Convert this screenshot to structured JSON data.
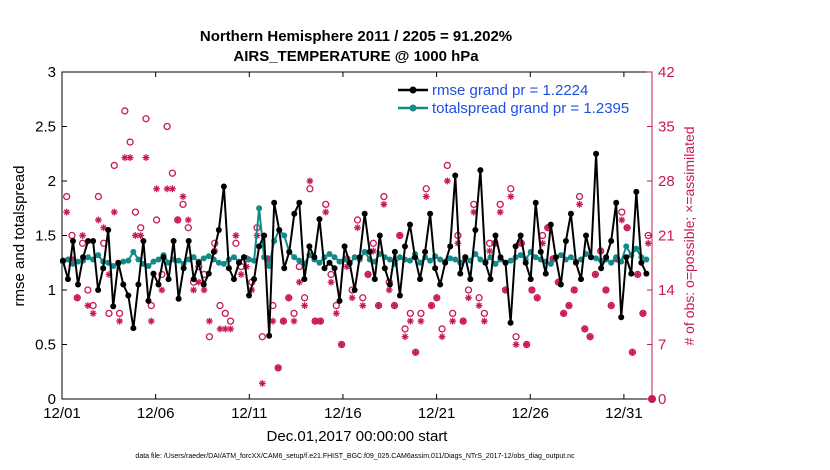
{
  "colors": {
    "rmse": "#000000",
    "spread": "#14898a",
    "obs": "#c8185a",
    "legend_text": "#1f4fe0"
  },
  "chart_data": {
    "type": "line",
    "title": "Northern Hemisphere 2011 / 2205 = 91.202%",
    "subtitle": "AIRS_TEMPERATURE @ 1000 hPa",
    "xlabel": "Dec.01,2017 00:00:00 start",
    "ylabel": "rmse and totalspread",
    "ylabel_right": "# of obs: o=possible; ×=assimilated",
    "xlim": [
      0,
      31.5
    ],
    "ylim": [
      0,
      3
    ],
    "ylim_right": [
      0,
      42
    ],
    "x_ticks": [
      0,
      5,
      10,
      15,
      20,
      25,
      30
    ],
    "x_tick_labels": [
      "12/01",
      "12/06",
      "12/11",
      "12/16",
      "12/21",
      "12/26",
      "12/31"
    ],
    "y_ticks": [
      0,
      0.5,
      1,
      1.5,
      2,
      2.5,
      3
    ],
    "y_tick_labels": [
      "0",
      "0.5",
      "1",
      "1.5",
      "2",
      "2.5",
      "3"
    ],
    "y_right_ticks": [
      0,
      7,
      14,
      21,
      28,
      35,
      42
    ],
    "y_right_tick_labels": [
      "0",
      "7",
      "14",
      "21",
      "28",
      "35",
      "42"
    ],
    "legend_position": "top-right",
    "series": [
      {
        "name": "rmse grand pr = 1.2224",
        "marker": "dot",
        "values": [
          1.27,
          1.1,
          1.45,
          1.05,
          1.3,
          1.45,
          1.45,
          1.0,
          1.2,
          1.55,
          0.85,
          1.25,
          1.05,
          0.95,
          0.65,
          1.05,
          1.45,
          0.9,
          1.15,
          1.05,
          1.3,
          1.1,
          1.45,
          0.92,
          1.2,
          1.45,
          1.1,
          1.25,
          1.05,
          1.15,
          1.35,
          1.55,
          1.95,
          1.2,
          1.1,
          1.25,
          1.3,
          0.95,
          1.1,
          1.4,
          1.5,
          0.58,
          1.8,
          1.55,
          1.2,
          1.35,
          1.7,
          1.8,
          1.1,
          1.4,
          1.3,
          1.65,
          1.2,
          1.25,
          1.2,
          0.9,
          1.4,
          1.25,
          1.0,
          1.3,
          1.7,
          1.35,
          1.1,
          1.5,
          1.2,
          1.05,
          1.35,
          0.95,
          1.4,
          1.6,
          1.3,
          1.1,
          1.35,
          1.7,
          1.2,
          1.05,
          1.25,
          1.4,
          2.05,
          1.15,
          1.3,
          1.1,
          1.55,
          2.1,
          1.25,
          1.1,
          1.5,
          1.3,
          1.25,
          0.7,
          1.4,
          1.5,
          1.25,
          1.1,
          1.8,
          1.35,
          1.15,
          1.6,
          1.3,
          1.05,
          1.45,
          1.7,
          1.25,
          1.1,
          1.5,
          1.3,
          2.25,
          1.2,
          1.3,
          1.45,
          1.8,
          0.75,
          1.3,
          1.15,
          1.9,
          1.25,
          1.15
        ]
      },
      {
        "name": "totalspread grand pr = 1.2395",
        "marker": "dot",
        "values": [
          1.26,
          1.28,
          1.24,
          1.26,
          1.27,
          1.3,
          1.28,
          1.32,
          1.26,
          1.25,
          1.22,
          1.24,
          1.26,
          1.27,
          1.35,
          1.28,
          1.24,
          1.22,
          1.26,
          1.28,
          1.32,
          1.25,
          1.28,
          1.27,
          1.24,
          1.28,
          1.3,
          1.26,
          1.29,
          1.31,
          1.28,
          1.25,
          1.24,
          1.28,
          1.3,
          1.26,
          1.3,
          1.28,
          1.27,
          1.75,
          1.3,
          1.22,
          1.45,
          1.55,
          1.5,
          1.35,
          1.3,
          1.27,
          1.24,
          1.32,
          1.28,
          1.25,
          1.3,
          1.33,
          1.3,
          1.26,
          1.28,
          1.24,
          1.3,
          1.28,
          1.35,
          1.28,
          1.26,
          1.33,
          1.3,
          1.28,
          1.24,
          1.3,
          1.28,
          1.27,
          1.33,
          1.25,
          1.3,
          1.27,
          1.31,
          1.28,
          1.26,
          1.29,
          1.28,
          1.25,
          1.3,
          1.27,
          1.33,
          1.28,
          1.26,
          1.3,
          1.24,
          1.28,
          1.25,
          1.27,
          1.3,
          1.32,
          1.28,
          1.35,
          1.3,
          1.28,
          1.26,
          1.24,
          1.3,
          1.32,
          1.28,
          1.3,
          1.26,
          1.28,
          1.33,
          1.3,
          1.29,
          1.27,
          1.28,
          1.25,
          1.3,
          1.26,
          1.4,
          1.32,
          1.38,
          1.3,
          1.28
        ]
      }
    ],
    "obs_possible": [
      26,
      21,
      13,
      20,
      14,
      12,
      26,
      20,
      11,
      30,
      11,
      37,
      33,
      24,
      22,
      36,
      12,
      23,
      16,
      35,
      29,
      23,
      25,
      22,
      15,
      17,
      16,
      8,
      20,
      12,
      11,
      10,
      20,
      17,
      18,
      15,
      22,
      8,
      18,
      12,
      4,
      10,
      13,
      11,
      17,
      13,
      27,
      10,
      10,
      25,
      16,
      12,
      7,
      18,
      14,
      23,
      13,
      16,
      20,
      12,
      26,
      15,
      12,
      21,
      9,
      11,
      6,
      11,
      27,
      12,
      13,
      9,
      30,
      11,
      21,
      10,
      14,
      25,
      13,
      11,
      20,
      20,
      25,
      14,
      27,
      8,
      20,
      7,
      14,
      13,
      21,
      22,
      18,
      15,
      11,
      12,
      14,
      26,
      9,
      8,
      16,
      19,
      14,
      12,
      18,
      24,
      22,
      6,
      16,
      11,
      21
    ],
    "obs_assimilated": [
      24,
      18,
      13,
      21,
      12,
      11,
      23,
      22,
      16,
      24,
      10,
      31,
      31,
      21,
      21,
      31,
      10,
      27,
      14,
      27,
      27,
      23,
      26,
      23,
      14,
      15,
      14,
      10,
      19,
      9,
      9,
      9,
      21,
      16,
      17,
      14,
      21,
      2,
      18,
      10,
      4,
      10,
      13,
      10,
      15,
      12,
      28,
      10,
      10,
      24,
      15,
      11,
      7,
      17,
      13,
      22,
      12,
      16,
      19,
      12,
      25,
      14,
      12,
      21,
      8,
      10,
      6,
      10,
      26,
      12,
      13,
      8,
      28,
      10,
      20,
      10,
      13,
      24,
      12,
      10,
      19,
      20,
      24,
      14,
      26,
      7,
      20,
      7,
      14,
      13,
      20,
      22,
      18,
      15,
      11,
      12,
      14,
      25,
      9,
      8,
      16,
      19,
      14,
      12,
      18,
      23,
      22,
      6,
      16,
      11,
      20
    ]
  },
  "footnote": "data file: /Users/raeder/DAI/ATM_forcXX/CAM6_setup/f.e21.FHIST_BGC.f09_025.CAM6assim.011/Diags_NTrS_2017-12/obs_diag_output.nc"
}
